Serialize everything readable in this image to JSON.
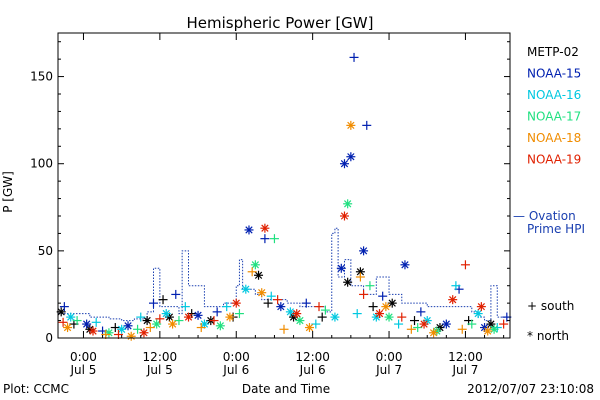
{
  "chart_data": {
    "type": "scatter",
    "title": "Hemispheric Power [GW]",
    "ylabel": "P [GW]",
    "xlabel": "Date and Time",
    "ylim": [
      0,
      175
    ],
    "yticks": [
      0,
      50,
      100,
      150
    ],
    "x_unit": "hours since 2012-07-05 00:00 UT",
    "xlim": [
      -4,
      67
    ],
    "xticks": [
      {
        "x": 0,
        "time": "0:00",
        "date": "Jul 5"
      },
      {
        "x": 12,
        "time": "12:00",
        "date": "Jul 5"
      },
      {
        "x": 24,
        "time": "0:00",
        "date": "Jul 6"
      },
      {
        "x": 36,
        "time": "12:00",
        "date": "Jul 6"
      },
      {
        "x": 48,
        "time": "0:00",
        "date": "Jul 7"
      },
      {
        "x": 60,
        "time": "12:00",
        "date": "Jul 7"
      }
    ],
    "legend": {
      "placement": "right",
      "satellites": [
        {
          "name": "METP-02",
          "color": "#000000"
        },
        {
          "name": "NOAA-15",
          "color": "#0020b0"
        },
        {
          "name": "NOAA-16",
          "color": "#00c8e0"
        },
        {
          "name": "NOAA-17",
          "color": "#20e080"
        },
        {
          "name": "NOAA-18",
          "color": "#f08c00"
        },
        {
          "name": "NOAA-19",
          "color": "#e02000"
        }
      ],
      "model": {
        "line1": "— Ovation",
        "line2": "Prime HPI",
        "color": "#1a3fb0"
      },
      "markers": [
        {
          "symbol": "+",
          "label": "south"
        },
        {
          "symbol": "*",
          "label": "north"
        }
      ]
    },
    "ovation_hpi": [
      [
        -4,
        14
      ],
      [
        1,
        12
      ],
      [
        4,
        11
      ],
      [
        6,
        10
      ],
      [
        8,
        11
      ],
      [
        10,
        15
      ],
      [
        11,
        40
      ],
      [
        12,
        18
      ],
      [
        15,
        14
      ],
      [
        15.5,
        50
      ],
      [
        16.5,
        30
      ],
      [
        19,
        18
      ],
      [
        22,
        20
      ],
      [
        24,
        30
      ],
      [
        24.5,
        45
      ],
      [
        25,
        28
      ],
      [
        27,
        25
      ],
      [
        28,
        22
      ],
      [
        30,
        22
      ],
      [
        32,
        20
      ],
      [
        34,
        18
      ],
      [
        36,
        18
      ],
      [
        38,
        15
      ],
      [
        39,
        60
      ],
      [
        39.5,
        63
      ],
      [
        40,
        35
      ],
      [
        41,
        45
      ],
      [
        42,
        30
      ],
      [
        44,
        25
      ],
      [
        46,
        35
      ],
      [
        48,
        25
      ],
      [
        50,
        20
      ],
      [
        52,
        20
      ],
      [
        54,
        18
      ],
      [
        56,
        18
      ],
      [
        58,
        18
      ],
      [
        60,
        18
      ],
      [
        61,
        15
      ],
      [
        62,
        12
      ],
      [
        63,
        10
      ],
      [
        64,
        30
      ],
      [
        65,
        12
      ],
      [
        67,
        12
      ]
    ],
    "points": [
      {
        "sat": "METP-02",
        "hemi": "north",
        "x": -3.5,
        "y": 15
      },
      {
        "sat": "METP-02",
        "hemi": "south",
        "x": -1.5,
        "y": 8
      },
      {
        "sat": "METP-02",
        "hemi": "north",
        "x": 1,
        "y": 5
      },
      {
        "sat": "METP-02",
        "hemi": "south",
        "x": 5,
        "y": 6
      },
      {
        "sat": "METP-02",
        "hemi": "north",
        "x": 10,
        "y": 10
      },
      {
        "sat": "METP-02",
        "hemi": "south",
        "x": 12.5,
        "y": 22
      },
      {
        "sat": "METP-02",
        "hemi": "north",
        "x": 13.5,
        "y": 12
      },
      {
        "sat": "METP-02",
        "hemi": "south",
        "x": 17,
        "y": 14
      },
      {
        "sat": "METP-02",
        "hemi": "north",
        "x": 20,
        "y": 10
      },
      {
        "sat": "METP-02",
        "hemi": "south",
        "x": 23.5,
        "y": 12
      },
      {
        "sat": "METP-02",
        "hemi": "north",
        "x": 27.5,
        "y": 36
      },
      {
        "sat": "METP-02",
        "hemi": "south",
        "x": 29,
        "y": 20
      },
      {
        "sat": "METP-02",
        "hemi": "north",
        "x": 33,
        "y": 12
      },
      {
        "sat": "METP-02",
        "hemi": "south",
        "x": 37.5,
        "y": 12
      },
      {
        "sat": "METP-02",
        "hemi": "north",
        "x": 41.5,
        "y": 32
      },
      {
        "sat": "METP-02",
        "hemi": "north",
        "x": 43.5,
        "y": 38
      },
      {
        "sat": "METP-02",
        "hemi": "south",
        "x": 45.5,
        "y": 18
      },
      {
        "sat": "METP-02",
        "hemi": "north",
        "x": 48.5,
        "y": 20
      },
      {
        "sat": "METP-02",
        "hemi": "south",
        "x": 52,
        "y": 10
      },
      {
        "sat": "METP-02",
        "hemi": "north",
        "x": 56,
        "y": 6
      },
      {
        "sat": "METP-02",
        "hemi": "south",
        "x": 60.5,
        "y": 10
      },
      {
        "sat": "METP-02",
        "hemi": "north",
        "x": 64,
        "y": 8
      },
      {
        "sat": "NOAA-15",
        "hemi": "south",
        "x": -3,
        "y": 18
      },
      {
        "sat": "NOAA-15",
        "hemi": "north",
        "x": 0.5,
        "y": 8
      },
      {
        "sat": "NOAA-15",
        "hemi": "south",
        "x": 3,
        "y": 4
      },
      {
        "sat": "NOAA-15",
        "hemi": "north",
        "x": 7,
        "y": 7
      },
      {
        "sat": "NOAA-15",
        "hemi": "south",
        "x": 11,
        "y": 20
      },
      {
        "sat": "NOAA-15",
        "hemi": "south",
        "x": 14.5,
        "y": 25
      },
      {
        "sat": "NOAA-15",
        "hemi": "north",
        "x": 18,
        "y": 13
      },
      {
        "sat": "NOAA-15",
        "hemi": "south",
        "x": 21,
        "y": 15
      },
      {
        "sat": "NOAA-15",
        "hemi": "north",
        "x": 26,
        "y": 62
      },
      {
        "sat": "NOAA-15",
        "hemi": "south",
        "x": 28.5,
        "y": 57
      },
      {
        "sat": "NOAA-15",
        "hemi": "north",
        "x": 31,
        "y": 18
      },
      {
        "sat": "NOAA-15",
        "hemi": "south",
        "x": 35,
        "y": 20
      },
      {
        "sat": "NOAA-15",
        "hemi": "north",
        "x": 40.5,
        "y": 40
      },
      {
        "sat": "NOAA-15",
        "hemi": "north",
        "x": 41,
        "y": 100
      },
      {
        "sat": "NOAA-15",
        "hemi": "north",
        "x": 42,
        "y": 104
      },
      {
        "sat": "NOAA-15",
        "hemi": "south",
        "x": 42.5,
        "y": 161
      },
      {
        "sat": "NOAA-15",
        "hemi": "south",
        "x": 44.5,
        "y": 122
      },
      {
        "sat": "NOAA-15",
        "hemi": "north",
        "x": 44,
        "y": 50
      },
      {
        "sat": "NOAA-15",
        "hemi": "south",
        "x": 47,
        "y": 24
      },
      {
        "sat": "NOAA-15",
        "hemi": "north",
        "x": 50.5,
        "y": 42
      },
      {
        "sat": "NOAA-15",
        "hemi": "south",
        "x": 53,
        "y": 15
      },
      {
        "sat": "NOAA-15",
        "hemi": "north",
        "x": 57,
        "y": 8
      },
      {
        "sat": "NOAA-15",
        "hemi": "south",
        "x": 59,
        "y": 28
      },
      {
        "sat": "NOAA-15",
        "hemi": "north",
        "x": 63,
        "y": 6
      },
      {
        "sat": "NOAA-15",
        "hemi": "south",
        "x": 66.5,
        "y": 12
      },
      {
        "sat": "NOAA-16",
        "hemi": "north",
        "x": -2,
        "y": 12
      },
      {
        "sat": "NOAA-16",
        "hemi": "south",
        "x": 2,
        "y": 9
      },
      {
        "sat": "NOAA-16",
        "hemi": "north",
        "x": 6,
        "y": 5
      },
      {
        "sat": "NOAA-16",
        "hemi": "south",
        "x": 9,
        "y": 12
      },
      {
        "sat": "NOAA-16",
        "hemi": "north",
        "x": 13,
        "y": 14
      },
      {
        "sat": "NOAA-16",
        "hemi": "south",
        "x": 16,
        "y": 18
      },
      {
        "sat": "NOAA-16",
        "hemi": "north",
        "x": 19,
        "y": 8
      },
      {
        "sat": "NOAA-16",
        "hemi": "south",
        "x": 22.5,
        "y": 18
      },
      {
        "sat": "NOAA-16",
        "hemi": "north",
        "x": 25.5,
        "y": 28
      },
      {
        "sat": "NOAA-16",
        "hemi": "south",
        "x": 29.5,
        "y": 24
      },
      {
        "sat": "NOAA-16",
        "hemi": "north",
        "x": 32.5,
        "y": 15
      },
      {
        "sat": "NOAA-16",
        "hemi": "south",
        "x": 36.5,
        "y": 8
      },
      {
        "sat": "NOAA-16",
        "hemi": "north",
        "x": 39.5,
        "y": 12
      },
      {
        "sat": "NOAA-16",
        "hemi": "south",
        "x": 43,
        "y": 14
      },
      {
        "sat": "NOAA-16",
        "hemi": "north",
        "x": 46,
        "y": 12
      },
      {
        "sat": "NOAA-16",
        "hemi": "south",
        "x": 49.5,
        "y": 8
      },
      {
        "sat": "NOAA-16",
        "hemi": "north",
        "x": 54,
        "y": 10
      },
      {
        "sat": "NOAA-16",
        "hemi": "south",
        "x": 58.5,
        "y": 30
      },
      {
        "sat": "NOAA-16",
        "hemi": "north",
        "x": 62,
        "y": 14
      },
      {
        "sat": "NOAA-16",
        "hemi": "south",
        "x": 65,
        "y": 6
      },
      {
        "sat": "NOAA-17",
        "hemi": "south",
        "x": -1,
        "y": 10
      },
      {
        "sat": "NOAA-17",
        "hemi": "north",
        "x": 4,
        "y": 3
      },
      {
        "sat": "NOAA-17",
        "hemi": "south",
        "x": 8.5,
        "y": 5
      },
      {
        "sat": "NOAA-17",
        "hemi": "north",
        "x": 11.5,
        "y": 8
      },
      {
        "sat": "NOAA-17",
        "hemi": "south",
        "x": 15,
        "y": 10
      },
      {
        "sat": "NOAA-17",
        "hemi": "north",
        "x": 21.5,
        "y": 7
      },
      {
        "sat": "NOAA-17",
        "hemi": "south",
        "x": 24.5,
        "y": 14
      },
      {
        "sat": "NOAA-17",
        "hemi": "north",
        "x": 27,
        "y": 42
      },
      {
        "sat": "NOAA-17",
        "hemi": "south",
        "x": 30,
        "y": 57
      },
      {
        "sat": "NOAA-17",
        "hemi": "north",
        "x": 34,
        "y": 10
      },
      {
        "sat": "NOAA-17",
        "hemi": "south",
        "x": 38,
        "y": 16
      },
      {
        "sat": "NOAA-17",
        "hemi": "north",
        "x": 41.5,
        "y": 77
      },
      {
        "sat": "NOAA-17",
        "hemi": "south",
        "x": 45,
        "y": 30
      },
      {
        "sat": "NOAA-17",
        "hemi": "north",
        "x": 48,
        "y": 12
      },
      {
        "sat": "NOAA-17",
        "hemi": "south",
        "x": 52.5,
        "y": 6
      },
      {
        "sat": "NOAA-17",
        "hemi": "north",
        "x": 55.5,
        "y": 4
      },
      {
        "sat": "NOAA-17",
        "hemi": "south",
        "x": 61,
        "y": 8
      },
      {
        "sat": "NOAA-17",
        "hemi": "north",
        "x": 64.5,
        "y": 5
      },
      {
        "sat": "NOAA-18",
        "hemi": "north",
        "x": -2.5,
        "y": 6
      },
      {
        "sat": "NOAA-18",
        "hemi": "south",
        "x": 3.5,
        "y": 2
      },
      {
        "sat": "NOAA-18",
        "hemi": "north",
        "x": 7.5,
        "y": 1
      },
      {
        "sat": "NOAA-18",
        "hemi": "south",
        "x": 10.5,
        "y": 6
      },
      {
        "sat": "NOAA-18",
        "hemi": "north",
        "x": 14,
        "y": 8
      },
      {
        "sat": "NOAA-18",
        "hemi": "south",
        "x": 18.5,
        "y": 6
      },
      {
        "sat": "NOAA-18",
        "hemi": "north",
        "x": 23,
        "y": 12
      },
      {
        "sat": "NOAA-18",
        "hemi": "south",
        "x": 26.5,
        "y": 38
      },
      {
        "sat": "NOAA-18",
        "hemi": "north",
        "x": 28,
        "y": 26
      },
      {
        "sat": "NOAA-18",
        "hemi": "south",
        "x": 31.5,
        "y": 5
      },
      {
        "sat": "NOAA-18",
        "hemi": "north",
        "x": 35.5,
        "y": 6
      },
      {
        "sat": "NOAA-18",
        "hemi": "north",
        "x": 42,
        "y": 122
      },
      {
        "sat": "NOAA-18",
        "hemi": "south",
        "x": 43.5,
        "y": 35
      },
      {
        "sat": "NOAA-18",
        "hemi": "north",
        "x": 47.5,
        "y": 18
      },
      {
        "sat": "NOAA-18",
        "hemi": "south",
        "x": 51.5,
        "y": 5
      },
      {
        "sat": "NOAA-18",
        "hemi": "north",
        "x": 55,
        "y": 3
      },
      {
        "sat": "NOAA-18",
        "hemi": "south",
        "x": 59.5,
        "y": 5
      },
      {
        "sat": "NOAA-18",
        "hemi": "north",
        "x": 63.5,
        "y": 4
      },
      {
        "sat": "NOAA-19",
        "hemi": "south",
        "x": -3.2,
        "y": 9
      },
      {
        "sat": "NOAA-19",
        "hemi": "north",
        "x": 1.5,
        "y": 4
      },
      {
        "sat": "NOAA-19",
        "hemi": "south",
        "x": 5.5,
        "y": 2
      },
      {
        "sat": "NOAA-19",
        "hemi": "north",
        "x": 9.5,
        "y": 3
      },
      {
        "sat": "NOAA-19",
        "hemi": "south",
        "x": 12,
        "y": 11
      },
      {
        "sat": "NOAA-19",
        "hemi": "north",
        "x": 16.5,
        "y": 12
      },
      {
        "sat": "NOAA-19",
        "hemi": "south",
        "x": 20.5,
        "y": 10
      },
      {
        "sat": "NOAA-19",
        "hemi": "north",
        "x": 24,
        "y": 20
      },
      {
        "sat": "NOAA-19",
        "hemi": "north",
        "x": 28.5,
        "y": 63
      },
      {
        "sat": "NOAA-19",
        "hemi": "south",
        "x": 30.5,
        "y": 22
      },
      {
        "sat": "NOAA-19",
        "hemi": "north",
        "x": 33.5,
        "y": 14
      },
      {
        "sat": "NOAA-19",
        "hemi": "south",
        "x": 37,
        "y": 18
      },
      {
        "sat": "NOAA-19",
        "hemi": "north",
        "x": 41,
        "y": 70
      },
      {
        "sat": "NOAA-19",
        "hemi": "south",
        "x": 44,
        "y": 25
      },
      {
        "sat": "NOAA-19",
        "hemi": "north",
        "x": 46.5,
        "y": 14
      },
      {
        "sat": "NOAA-19",
        "hemi": "south",
        "x": 50,
        "y": 12
      },
      {
        "sat": "NOAA-19",
        "hemi": "north",
        "x": 53.5,
        "y": 8
      },
      {
        "sat": "NOAA-19",
        "hemi": "north",
        "x": 58,
        "y": 22
      },
      {
        "sat": "NOAA-19",
        "hemi": "south",
        "x": 60,
        "y": 42
      },
      {
        "sat": "NOAA-19",
        "hemi": "north",
        "x": 62.5,
        "y": 18
      },
      {
        "sat": "NOAA-19",
        "hemi": "south",
        "x": 66,
        "y": 8
      }
    ]
  },
  "footer": {
    "credit": "Plot: CCMC",
    "timestamp": "2012/07/07 23:10:08"
  }
}
